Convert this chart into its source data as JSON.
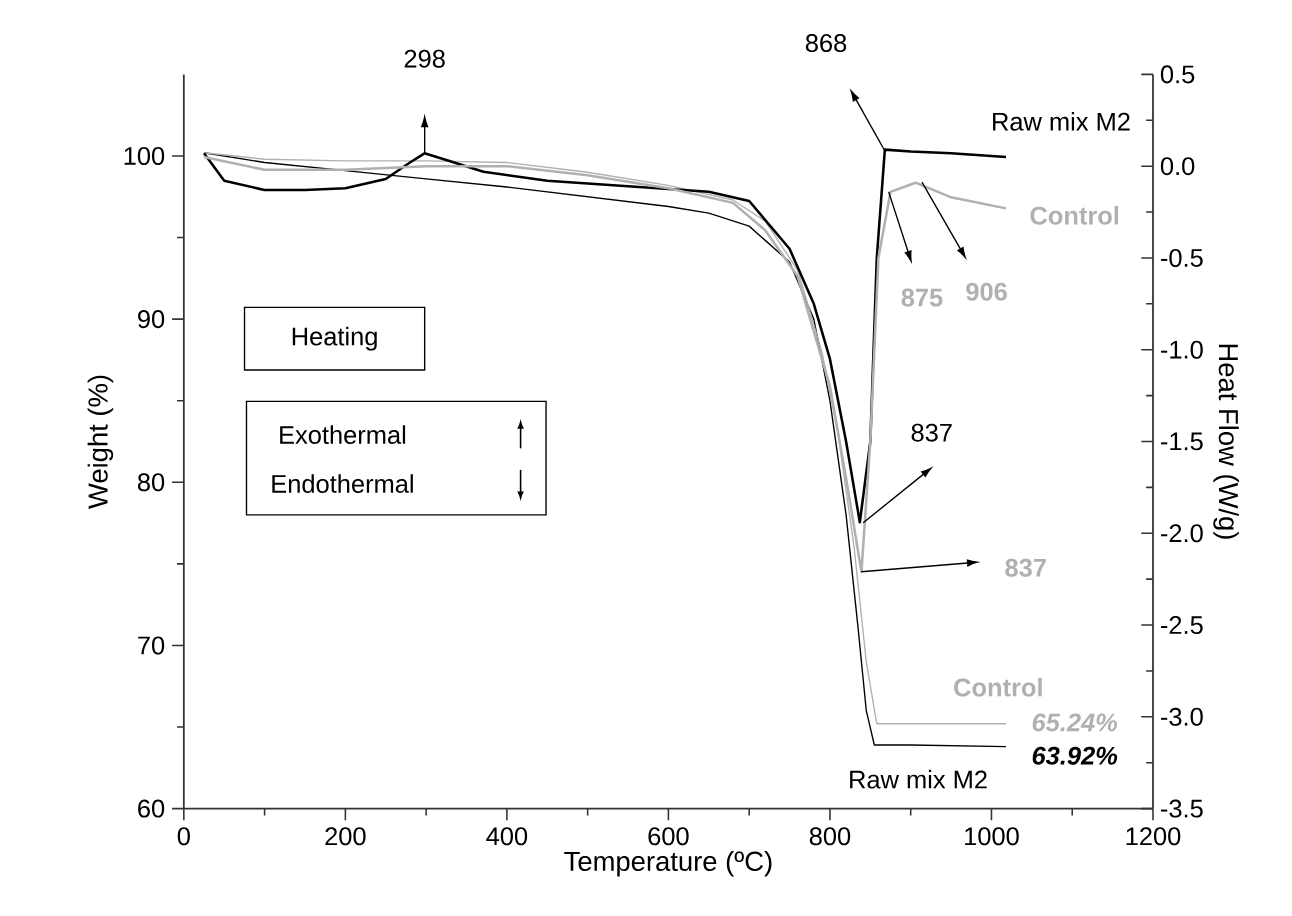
{
  "chart_data": {
    "type": "line",
    "xlabel": "Temperature (ºC)",
    "ylabel": "Weight (%)",
    "y2label": "Heat Flow (W/g)",
    "xlim": [
      0,
      1200
    ],
    "xticks": [
      0,
      200,
      400,
      600,
      800,
      1000,
      1200
    ],
    "ylim": [
      60,
      105
    ],
    "yticks": [
      60,
      70,
      80,
      90,
      100
    ],
    "y2lim": [
      -3.5,
      0.5
    ],
    "y2ticks": [
      {
        "value": -3.5,
        "label": "-3.5"
      },
      {
        "value": -3.0,
        "label": "-3.0"
      },
      {
        "value": -2.5,
        "label": "-2.5"
      },
      {
        "value": -2.0,
        "label": "-2.0"
      },
      {
        "value": -1.5,
        "label": "-1.5"
      },
      {
        "value": -1.0,
        "label": "-1.0"
      },
      {
        "value": -0.5,
        "label": "-0.5"
      },
      {
        "value": 0.0,
        "label": "0.0"
      },
      {
        "value": 0.5,
        "label": "0.5"
      }
    ],
    "series": [
      {
        "name": "Raw mix M2",
        "color": "#000000",
        "x": [
          25,
          100,
          200,
          300,
          400,
          500,
          600,
          650,
          700,
          750,
          780,
          800,
          820,
          835,
          845,
          855,
          900,
          1018
        ],
        "values": [
          100.2,
          99.6,
          99.1,
          98.6,
          98.1,
          97.5,
          96.9,
          96.5,
          95.7,
          93.5,
          90,
          85,
          78,
          71,
          66,
          63.9,
          63.9,
          63.8
        ]
      },
      {
        "name": "Control",
        "color": "#b0b0b0",
        "x": [
          25,
          100,
          200,
          300,
          400,
          500,
          600,
          680,
          720,
          760,
          790,
          810,
          830,
          845,
          858,
          900,
          1018
        ],
        "values": [
          100.2,
          99.8,
          99.7,
          99.7,
          99.6,
          99.0,
          98.2,
          97.3,
          96,
          93,
          88,
          83,
          76,
          69,
          65.2,
          65.2,
          65.2
        ]
      },
      {
        "name": "Raw mix M2",
        "color": "#000000",
        "axis": "y2",
        "x": [
          25,
          50,
          100,
          150,
          200,
          250,
          280,
          298,
          320,
          371,
          450,
          550,
          650,
          700,
          750,
          780,
          800,
          820,
          837,
          850,
          858,
          868,
          900,
          950,
          1018
        ],
        "values": [
          0.07,
          -0.08,
          -0.13,
          -0.13,
          -0.12,
          -0.07,
          0.02,
          0.07,
          0.04,
          -0.03,
          -0.08,
          -0.11,
          -0.14,
          -0.19,
          -0.45,
          -0.75,
          -1.05,
          -1.5,
          -1.94,
          -1.5,
          -0.5,
          0.09,
          0.08,
          0.07,
          0.05
        ]
      },
      {
        "name": "Control",
        "color": "#b0b0b0",
        "axis": "y2",
        "x": [
          25,
          100,
          200,
          300,
          400,
          500,
          600,
          680,
          720,
          760,
          800,
          820,
          839,
          850,
          860,
          875,
          906,
          950,
          1018
        ],
        "values": [
          0.05,
          -0.02,
          -0.02,
          0.0,
          0.0,
          -0.05,
          -0.12,
          -0.2,
          -0.35,
          -0.6,
          -1.2,
          -1.7,
          -2.21,
          -1.5,
          -0.5,
          -0.14,
          -0.09,
          -0.17,
          -0.23
        ]
      }
    ],
    "annotations": [
      "298",
      "868",
      "875",
      "906",
      "837",
      "837",
      "Heating",
      "Exothermal",
      "Endothermal",
      "65.24%",
      "63.92%"
    ]
  }
}
